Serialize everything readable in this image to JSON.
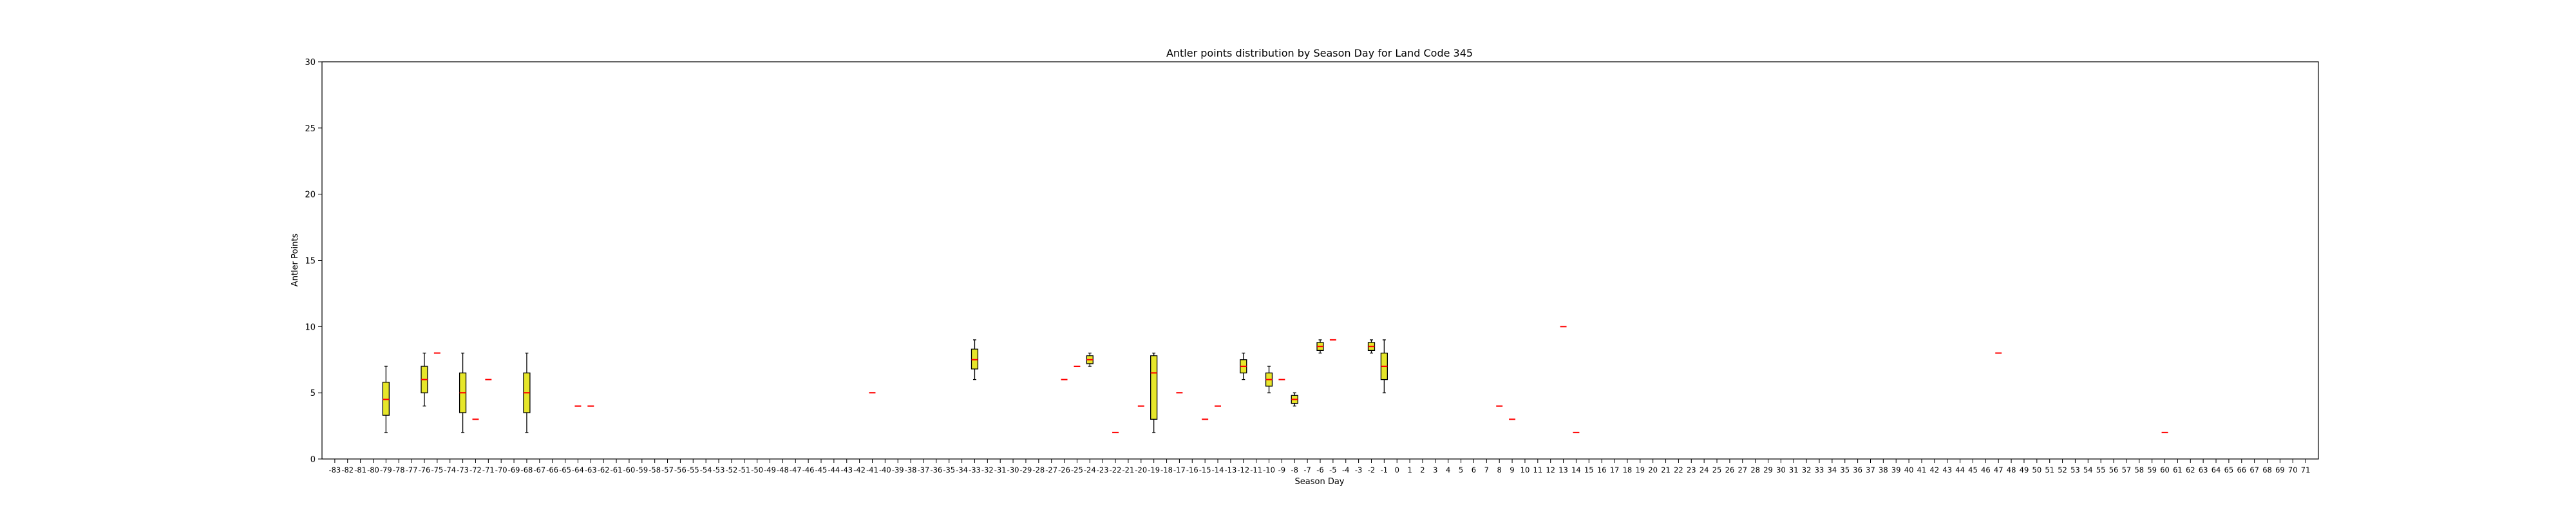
{
  "chart_data": {
    "type": "box",
    "title": "Antler points distribution by Season Day for Land Code 345",
    "xlabel": "Season Day",
    "ylabel": "Antler Points",
    "ylim": [
      0,
      30
    ],
    "yticks": [
      0,
      5,
      10,
      15,
      20,
      25,
      30
    ],
    "categories": [
      -83,
      -82,
      -81,
      -80,
      -79,
      -78,
      -77,
      -76,
      -75,
      -74,
      -73,
      -72,
      -71,
      -70,
      -69,
      -68,
      -67,
      -66,
      -65,
      -64,
      -63,
      -62,
      -61,
      -60,
      -59,
      -58,
      -57,
      -56,
      -55,
      -54,
      -53,
      -52,
      -51,
      -50,
      -49,
      -48,
      -47,
      -46,
      -45,
      -44,
      -43,
      -42,
      -41,
      -40,
      -39,
      -38,
      -37,
      -36,
      -35,
      -34,
      -33,
      -32,
      -31,
      -30,
      -29,
      -28,
      -27,
      -26,
      -25,
      -24,
      -23,
      -22,
      -21,
      -20,
      -19,
      -18,
      -17,
      -16,
      -15,
      -14,
      -13,
      -12,
      -11,
      -10,
      -9,
      -8,
      -7,
      -6,
      -5,
      -4,
      -3,
      -2,
      -1,
      0,
      1,
      2,
      3,
      4,
      5,
      6,
      7,
      8,
      9,
      10,
      11,
      12,
      13,
      14,
      15,
      16,
      17,
      18,
      19,
      20,
      21,
      22,
      23,
      24,
      25,
      26,
      27,
      28,
      29,
      30,
      31,
      32,
      33,
      34,
      35,
      36,
      37,
      38,
      39,
      40,
      41,
      42,
      43,
      44,
      45,
      46,
      47,
      48,
      49,
      50,
      51,
      52,
      53,
      54,
      55,
      56,
      57,
      58,
      59,
      60,
      61,
      62,
      63,
      64,
      65,
      66,
      67,
      68,
      69,
      70,
      71
    ],
    "boxes": [
      {
        "day": -79,
        "min": 2,
        "q1": 3.3,
        "median": 4.5,
        "q3": 5.8,
        "max": 7
      },
      {
        "day": -76,
        "min": 4,
        "q1": 5,
        "median": 6,
        "q3": 7,
        "max": 8
      },
      {
        "day": -75,
        "min": 8,
        "q1": 8,
        "median": 8,
        "q3": 8,
        "max": 8
      },
      {
        "day": -73,
        "min": 2,
        "q1": 3.5,
        "median": 5,
        "q3": 6.5,
        "max": 8
      },
      {
        "day": -72,
        "min": 3,
        "q1": 3,
        "median": 3,
        "q3": 3,
        "max": 3
      },
      {
        "day": -71,
        "min": 6,
        "q1": 6,
        "median": 6,
        "q3": 6,
        "max": 6
      },
      {
        "day": -68,
        "min": 2,
        "q1": 3.5,
        "median": 5,
        "q3": 6.5,
        "max": 8
      },
      {
        "day": -64,
        "min": 4,
        "q1": 4,
        "median": 4,
        "q3": 4,
        "max": 4
      },
      {
        "day": -63,
        "min": 4,
        "q1": 4,
        "median": 4,
        "q3": 4,
        "max": 4
      },
      {
        "day": -41,
        "min": 5,
        "q1": 5,
        "median": 5,
        "q3": 5,
        "max": 5
      },
      {
        "day": -33,
        "min": 6,
        "q1": 6.8,
        "median": 7.5,
        "q3": 8.3,
        "max": 9
      },
      {
        "day": -26,
        "min": 6,
        "q1": 6,
        "median": 6,
        "q3": 6,
        "max": 6
      },
      {
        "day": -25,
        "min": 7,
        "q1": 7,
        "median": 7,
        "q3": 7,
        "max": 7
      },
      {
        "day": -24,
        "min": 7,
        "q1": 7.2,
        "median": 7.5,
        "q3": 7.8,
        "max": 8
      },
      {
        "day": -22,
        "min": 2,
        "q1": 2,
        "median": 2,
        "q3": 2,
        "max": 2
      },
      {
        "day": -20,
        "min": 4,
        "q1": 4,
        "median": 4,
        "q3": 4,
        "max": 4
      },
      {
        "day": -19,
        "min": 2,
        "q1": 3,
        "median": 6.5,
        "q3": 7.8,
        "max": 8
      },
      {
        "day": -17,
        "min": 5,
        "q1": 5,
        "median": 5,
        "q3": 5,
        "max": 5
      },
      {
        "day": -15,
        "min": 3,
        "q1": 3,
        "median": 3,
        "q3": 3,
        "max": 3
      },
      {
        "day": -14,
        "min": 4,
        "q1": 4,
        "median": 4,
        "q3": 4,
        "max": 4
      },
      {
        "day": -12,
        "min": 6,
        "q1": 6.5,
        "median": 7,
        "q3": 7.5,
        "max": 8
      },
      {
        "day": -10,
        "min": 5,
        "q1": 5.5,
        "median": 6,
        "q3": 6.5,
        "max": 7
      },
      {
        "day": -9,
        "min": 6,
        "q1": 6,
        "median": 6,
        "q3": 6,
        "max": 6
      },
      {
        "day": -8,
        "min": 4,
        "q1": 4.2,
        "median": 4.5,
        "q3": 4.8,
        "max": 5
      },
      {
        "day": -6,
        "min": 8,
        "q1": 8.2,
        "median": 8.5,
        "q3": 8.8,
        "max": 9
      },
      {
        "day": -5,
        "min": 9,
        "q1": 9,
        "median": 9,
        "q3": 9,
        "max": 9
      },
      {
        "day": -2,
        "min": 8,
        "q1": 8.2,
        "median": 8.5,
        "q3": 8.8,
        "max": 9
      },
      {
        "day": -1,
        "min": 5,
        "q1": 6,
        "median": 7,
        "q3": 8,
        "max": 9
      },
      {
        "day": 8,
        "min": 4,
        "q1": 4,
        "median": 4,
        "q3": 4,
        "max": 4
      },
      {
        "day": 9,
        "min": 3,
        "q1": 3,
        "median": 3,
        "q3": 3,
        "max": 3
      },
      {
        "day": 13,
        "min": 10,
        "q1": 10,
        "median": 10,
        "q3": 10,
        "max": 10
      },
      {
        "day": 14,
        "min": 2,
        "q1": 2,
        "median": 2,
        "q3": 2,
        "max": 2
      },
      {
        "day": 47,
        "min": 8,
        "q1": 8,
        "median": 8,
        "q3": 8,
        "max": 8
      },
      {
        "day": 60,
        "min": 2,
        "q1": 2,
        "median": 2,
        "q3": 2,
        "max": 2
      }
    ],
    "colors": {
      "box_fill": "#e6e62a",
      "median": "#ff0000",
      "box_edge": "#000000"
    },
    "grid": false,
    "legend": "none"
  }
}
